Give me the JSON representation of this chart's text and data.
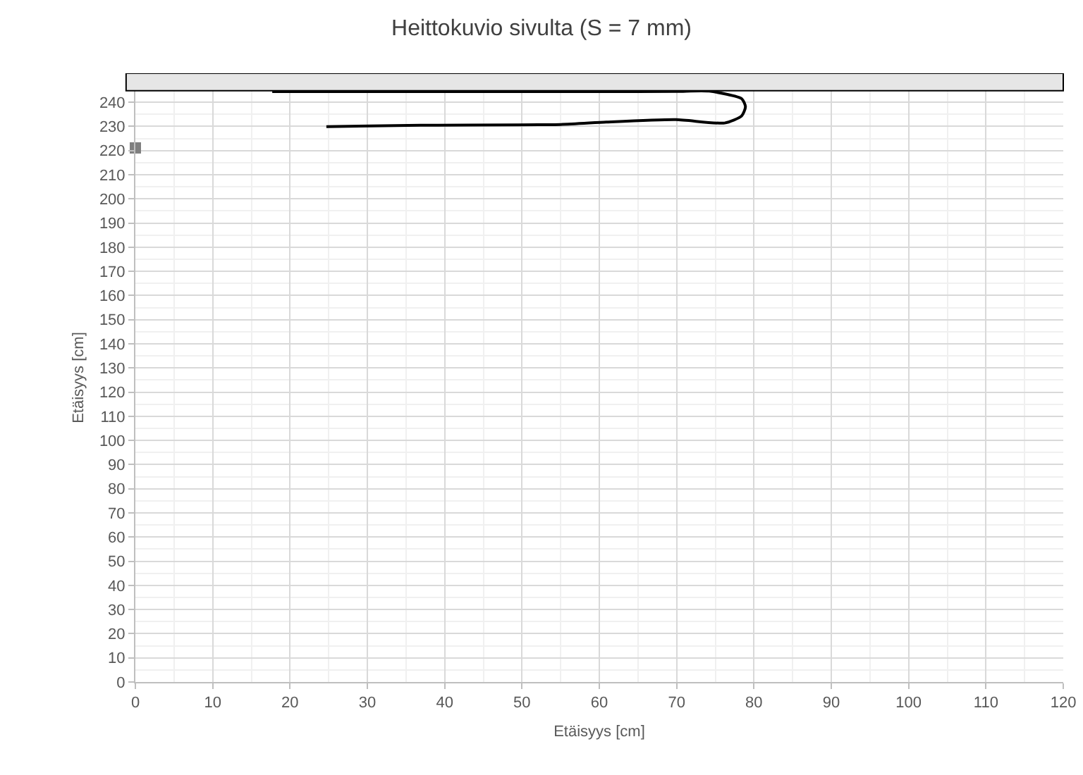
{
  "chart_data": {
    "type": "line",
    "title": "Heittokuvio sivulta (S = 7 mm)",
    "xlabel": "Etäisyys [cm]",
    "ylabel": "Etäisyys [cm]",
    "series": [
      {
        "color": "#000000",
        "x": [
          17.7,
          30,
          40,
          50,
          60,
          70,
          74.2,
          78.4,
          78.9,
          78.4,
          76.2,
          69.9,
          60.9,
          55,
          36.9,
          24.7
        ],
        "values": [
          244.4,
          244.4,
          244.4,
          244.4,
          244.4,
          244.5,
          244.6,
          241.5,
          238.2,
          234.3,
          231.4,
          232.8,
          231.8,
          230.8,
          230.5,
          229.9
        ]
      },
      {
        "type": "scatter",
        "color": "#7f7f7f",
        "marker": "square",
        "x": [
          0
        ],
        "values": [
          221.1
        ]
      }
    ],
    "bands": [
      {
        "axis": "y",
        "from": 244.8,
        "to": 252,
        "color": "#e6e6e6"
      }
    ],
    "xlim": [
      0,
      120
    ],
    "xticks": [
      0,
      10,
      20,
      30,
      40,
      50,
      60,
      70,
      80,
      90,
      100,
      110,
      120
    ],
    "ylim": [
      0,
      252
    ],
    "yticks": [
      0,
      10,
      20,
      30,
      40,
      50,
      60,
      70,
      80,
      90,
      100,
      110,
      120,
      130,
      140,
      150,
      160,
      170,
      180,
      190,
      200,
      210,
      220,
      230,
      240
    ],
    "grid": true
  }
}
